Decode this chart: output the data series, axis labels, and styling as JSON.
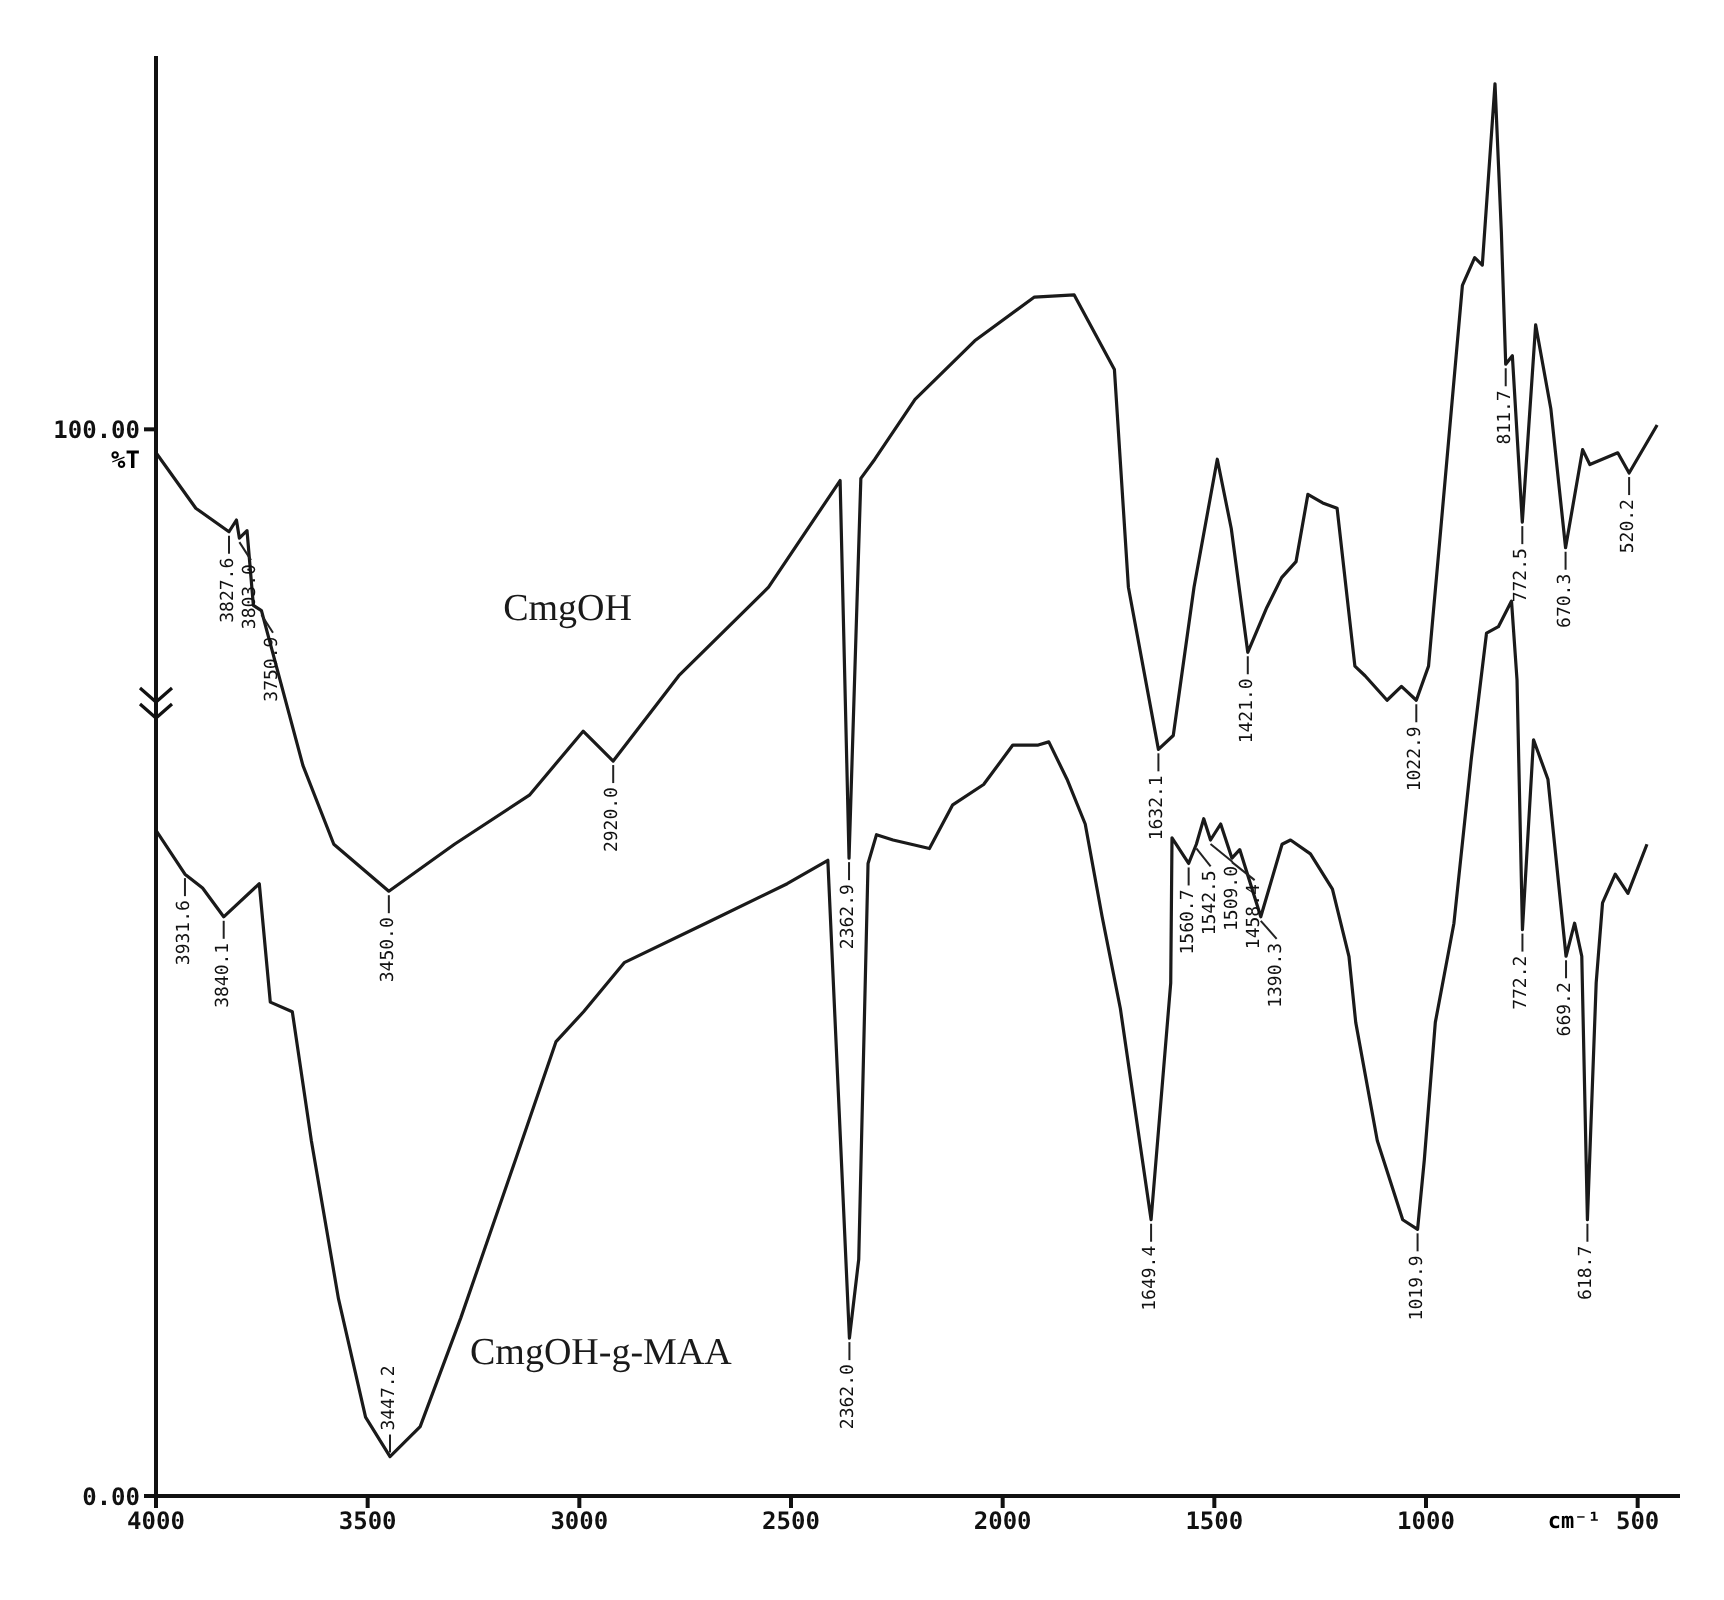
{
  "chart_data": {
    "type": "line",
    "xlabel": "cm⁻¹",
    "ylabel": "%T",
    "xlim": [
      4000,
      400
    ],
    "xticks": [
      4000,
      3500,
      3000,
      2500,
      2000,
      1500,
      1000,
      500
    ],
    "ylim": [
      0,
      135
    ],
    "yticks": [
      {
        "value": 0,
        "label": "0.00"
      },
      {
        "value": 100,
        "label": "100.00"
      }
    ],
    "grid": false,
    "legend": false,
    "marker": "none",
    "line_style": "solid",
    "series": [
      {
        "name": "CmgOH",
        "color": "#1a1a1a",
        "x": [
          4000,
          3906,
          3827.6,
          3810,
          3803.0,
          3785,
          3770,
          3750.9,
          3653,
          3580,
          3450.0,
          3295,
          3118,
          2991,
          2920.0,
          2765,
          2553,
          2384,
          2362.9,
          2335,
          2302,
          2207,
          2066,
          1925,
          1831,
          1736,
          1703,
          1632.1,
          1597,
          1548,
          1493,
          1460,
          1421.0,
          1376,
          1341,
          1307,
          1279,
          1244,
          1210,
          1168,
          1144,
          1092,
          1058,
          1022.9,
          994,
          965,
          914,
          885,
          867,
          837,
          822,
          811.7,
          796,
          772.5,
          741,
          705,
          670.3,
          630,
          613,
          547,
          520.2,
          454
        ],
        "values": [
          97.8,
          92.6,
          90.4,
          91.5,
          89.8,
          90.5,
          83.5,
          83.0,
          68.5,
          61.1,
          56.7,
          61.1,
          65.7,
          71.7,
          68.9,
          76.9,
          85.2,
          95.2,
          59.8,
          95.4,
          97.2,
          102.8,
          108.3,
          112.4,
          112.6,
          105.6,
          85.2,
          70.0,
          71.3,
          85.2,
          97.2,
          90.7,
          79.1,
          83.3,
          86.1,
          87.6,
          93.9,
          93.1,
          92.6,
          77.8,
          76.9,
          74.6,
          75.9,
          74.6,
          77.8,
          90.7,
          113.5,
          116.1,
          115.4,
          132.4,
          118.5,
          106.1,
          106.9,
          91.3,
          109.8,
          101.9,
          88.9,
          98.1,
          96.7,
          97.8,
          95.9,
          100.4
        ]
      },
      {
        "name": "CmgOH-g-MAA",
        "color": "#1a1a1a",
        "x": [
          4000,
          3931.6,
          3890,
          3840.1,
          3756,
          3730,
          3678,
          3633,
          3569,
          3505,
          3447.2,
          3376,
          3280,
          3151,
          3055,
          2990,
          2894,
          2701,
          2509,
          2413,
          2362.0,
          2340,
          2318,
          2298,
          2259,
          2216,
          2173,
          2118,
          2045,
          1976,
          1916,
          1891,
          1848,
          1805,
          1765,
          1722,
          1649.4,
          1603,
          1600,
          1560.7,
          1542.5,
          1525,
          1509.0,
          1485,
          1458.4,
          1440,
          1390.3,
          1340,
          1320,
          1273,
          1221,
          1182,
          1166,
          1115,
          1055,
          1019.9,
          1004,
          978,
          934,
          893,
          857,
          829,
          798,
          785,
          772.2,
          746,
          712,
          669.2,
          649,
          632,
          618.7,
          598,
          583,
          553,
          523,
          478
        ],
        "values": [
          62.4,
          58.3,
          57.0,
          54.3,
          57.4,
          46.3,
          45.4,
          33.3,
          18.5,
          7.4,
          3.7,
          6.5,
          16.7,
          31.5,
          42.6,
          45.4,
          50.0,
          53.7,
          57.4,
          59.6,
          14.8,
          22.2,
          59.3,
          62.0,
          61.5,
          61.1,
          60.7,
          64.8,
          66.7,
          70.4,
          70.4,
          70.7,
          67.2,
          63.0,
          54.3,
          45.7,
          25.9,
          48.1,
          61.7,
          59.3,
          61.1,
          63.5,
          61.5,
          63.0,
          59.8,
          60.6,
          54.3,
          61.1,
          61.5,
          60.2,
          56.9,
          50.6,
          44.4,
          33.3,
          25.9,
          25.0,
          31.5,
          44.4,
          53.7,
          69.1,
          80.9,
          81.5,
          83.9,
          76.5,
          53.1,
          70.9,
          67.2,
          50.6,
          53.7,
          50.6,
          25.9,
          48.1,
          55.6,
          58.3,
          56.5,
          61.1
        ]
      }
    ],
    "annotations": [
      {
        "text": "3827.6",
        "x": 3827.6,
        "y": 90.4
      },
      {
        "text": "3803.0",
        "x": 3803.0,
        "y": 89.8
      },
      {
        "text": "3750.9",
        "x": 3750.9,
        "y": 83.0
      },
      {
        "text": "3450.0",
        "x": 3450.0,
        "y": 56.7
      },
      {
        "text": "2920.0",
        "x": 2920.0,
        "y": 68.9
      },
      {
        "text": "2362.9",
        "x": 2362.9,
        "y": 59.8
      },
      {
        "text": "1632.1",
        "x": 1632.1,
        "y": 70.0
      },
      {
        "text": "1421.0",
        "x": 1421.0,
        "y": 79.1
      },
      {
        "text": "1022.9",
        "x": 1022.9,
        "y": 74.6
      },
      {
        "text": "811.7",
        "x": 811.7,
        "y": 106.1
      },
      {
        "text": "772.5",
        "x": 772.5,
        "y": 91.3
      },
      {
        "text": "670.3",
        "x": 670.3,
        "y": 88.9
      },
      {
        "text": "520.2",
        "x": 520.2,
        "y": 95.9
      },
      {
        "text": "3931.6",
        "x": 3931.6,
        "y": 58.3
      },
      {
        "text": "3840.1",
        "x": 3840.1,
        "y": 54.3
      },
      {
        "text": "3447.2",
        "x": 3447.2,
        "y": 3.7
      },
      {
        "text": "2362.0",
        "x": 2362.0,
        "y": 14.8
      },
      {
        "text": "1649.4",
        "x": 1649.4,
        "y": 25.9
      },
      {
        "text": "1560.7",
        "x": 1560.7,
        "y": 59.3
      },
      {
        "text": "1542.5",
        "x": 1542.5,
        "y": 61.1
      },
      {
        "text": "1509.0",
        "x": 1509.0,
        "y": 61.5
      },
      {
        "text": "1458.4",
        "x": 1458.4,
        "y": 59.8
      },
      {
        "text": "1390.3",
        "x": 1390.3,
        "y": 54.3
      },
      {
        "text": "1019.9",
        "x": 1019.9,
        "y": 25.0
      },
      {
        "text": "772.2",
        "x": 772.2,
        "y": 53.1
      },
      {
        "text": "669.2",
        "x": 669.2,
        "y": 50.6
      },
      {
        "text": "618.7",
        "x": 618.7,
        "y": 25.9
      }
    ]
  }
}
